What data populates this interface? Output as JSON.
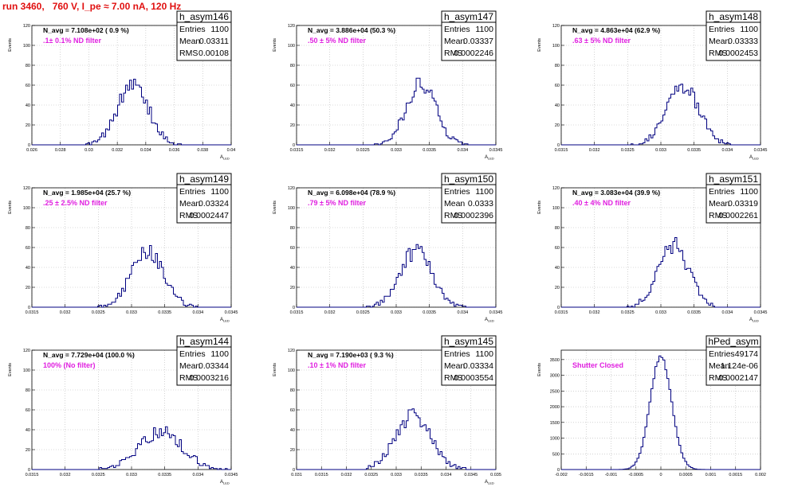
{
  "run_title": "run 3460,   760 V, I_pe ≈ 7.00 nA, 120 Hz",
  "colors": {
    "title": "#e01010",
    "histogram": "#000080",
    "annotation": "#e020e0",
    "grid": "#b8b8b8"
  },
  "chart_data": [
    {
      "type": "histogram",
      "name": "h_asym146",
      "annotation_top": "N_avg = 7.108e+02 ( 0.9 %)",
      "annotation_filter": ".1± 0.1% ND filter",
      "stats": {
        "entries_label": "Entries",
        "entries": "1100",
        "mean_label": "Mean",
        "mean": "0.03311",
        "rms_label": "RMS",
        "rms": "0.00108"
      },
      "xlim": [
        0.026,
        0.04
      ],
      "ylim": [
        0,
        120
      ],
      "xticks": [
        "0.026",
        "0.028",
        "0.03",
        "0.032",
        "0.034",
        "0.036",
        "0.038",
        "0.04"
      ],
      "yticks": [
        "0",
        "20",
        "40",
        "60",
        "80",
        "100",
        "120"
      ],
      "xlabel": "A_{LED}",
      "ylabel": "Events",
      "mean_val": 0.03311,
      "sigma": 0.00108,
      "peak": 62,
      "seed": 146
    },
    {
      "type": "histogram",
      "name": "h_asym147",
      "annotation_top": "N_avg = 3.886e+04 (50.3 %)",
      "annotation_filter": ".50 ± 5% ND filter",
      "stats": {
        "entries_label": "Entries",
        "entries": "1100",
        "mean_label": "Mean",
        "mean": "0.03337",
        "rms_label": "RMS",
        "rms": "0.0002246"
      },
      "xlim": [
        0.0315,
        0.0345
      ],
      "ylim": [
        0,
        120
      ],
      "xticks": [
        "0.0315",
        "0.032",
        "0.0325",
        "0.033",
        "0.0335",
        "0.034",
        "0.0345"
      ],
      "yticks": [
        "0",
        "20",
        "40",
        "60",
        "80",
        "100",
        "120"
      ],
      "xlabel": "A_{LED}",
      "ylabel": "Events",
      "mean_val": 0.03337,
      "sigma": 0.0002246,
      "peak": 62,
      "seed": 147
    },
    {
      "type": "histogram",
      "name": "h_asym148",
      "annotation_top": "N_avg = 4.863e+04 (62.9 %)",
      "annotation_filter": ".63 ± 5% ND filter",
      "stats": {
        "entries_label": "Entries",
        "entries": "1100",
        "mean_label": "Mean",
        "mean": "0.03333",
        "rms_label": "RMS",
        "rms": "0.0002453"
      },
      "xlim": [
        0.0315,
        0.0345
      ],
      "ylim": [
        0,
        120
      ],
      "xticks": [
        "0.0315",
        "0.032",
        "0.0325",
        "0.033",
        "0.0335",
        "0.034",
        "0.0345"
      ],
      "yticks": [
        "0",
        "20",
        "40",
        "60",
        "80",
        "100",
        "120"
      ],
      "xlabel": "A_{LED}",
      "ylabel": "Events",
      "mean_val": 0.03333,
      "sigma": 0.0002453,
      "peak": 58,
      "seed": 148
    },
    {
      "type": "histogram",
      "name": "h_asym149",
      "annotation_top": "N_avg = 1.985e+04 (25.7 %)",
      "annotation_filter": ".25 ± 2.5% ND filter",
      "stats": {
        "entries_label": "Entries",
        "entries": "1100",
        "mean_label": "Mean",
        "mean": "0.03324",
        "rms_label": "RMS",
        "rms": "0.0002447"
      },
      "xlim": [
        0.0315,
        0.0345
      ],
      "ylim": [
        0,
        120
      ],
      "xticks": [
        "0.0315",
        "0.032",
        "0.0325",
        "0.033",
        "0.0335",
        "0.034",
        "0.0345"
      ],
      "yticks": [
        "0",
        "20",
        "40",
        "60",
        "80",
        "100",
        "120"
      ],
      "xlabel": "A_{LED}",
      "ylabel": "Events",
      "mean_val": 0.03324,
      "sigma": 0.0002447,
      "peak": 56,
      "seed": 149
    },
    {
      "type": "histogram",
      "name": "h_asym150",
      "annotation_top": "N_avg = 6.098e+04 (78.9 %)",
      "annotation_filter": ".79 ± 5% ND filter",
      "stats": {
        "entries_label": "Entries",
        "entries": "1100",
        "mean_label": "Mean",
        "mean": "0.0333",
        "rms_label": "RMS",
        "rms": "0.0002396"
      },
      "xlim": [
        0.0315,
        0.0345
      ],
      "ylim": [
        0,
        120
      ],
      "xticks": [
        "0.0315",
        "0.032",
        "0.0325",
        "0.033",
        "0.0335",
        "0.034",
        "0.0345"
      ],
      "yticks": [
        "0",
        "20",
        "40",
        "60",
        "80",
        "100",
        "120"
      ],
      "xlabel": "A_{LED}",
      "ylabel": "Events",
      "mean_val": 0.0333,
      "sigma": 0.0002396,
      "peak": 57,
      "seed": 150
    },
    {
      "type": "histogram",
      "name": "h_asym151",
      "annotation_top": "N_avg = 3.083e+04 (39.9 %)",
      "annotation_filter": ".40 ± 4% ND filter",
      "stats": {
        "entries_label": "Entries",
        "entries": "1100",
        "mean_label": "Mean",
        "mean": "0.03319",
        "rms_label": "RMS",
        "rms": "0.0002261"
      },
      "xlim": [
        0.0315,
        0.0345
      ],
      "ylim": [
        0,
        120
      ],
      "xticks": [
        "0.0315",
        "0.032",
        "0.0325",
        "0.033",
        "0.0335",
        "0.034",
        "0.0345"
      ],
      "yticks": [
        "0",
        "20",
        "40",
        "60",
        "80",
        "100",
        "120"
      ],
      "xlabel": "A_{LED}",
      "ylabel": "Events",
      "mean_val": 0.03319,
      "sigma": 0.0002261,
      "peak": 62,
      "seed": 151
    },
    {
      "type": "histogram",
      "name": "h_asym144",
      "annotation_top": "N_avg = 7.729e+04 (100.0 %)",
      "annotation_filter": "100% (No filter)",
      "stats": {
        "entries_label": "Entries",
        "entries": "1100",
        "mean_label": "Mean",
        "mean": "0.03344",
        "rms_label": "RMS",
        "rms": "0.0003216"
      },
      "xlim": [
        0.0315,
        0.0345
      ],
      "ylim": [
        0,
        120
      ],
      "xticks": [
        "0.0315",
        "0.032",
        "0.0325",
        "0.033",
        "0.0335",
        "0.034",
        "0.0345"
      ],
      "yticks": [
        "0",
        "20",
        "40",
        "60",
        "80",
        "100",
        "120"
      ],
      "xlabel": "A_{LED}",
      "ylabel": "Events",
      "mean_val": 0.03344,
      "sigma": 0.0003216,
      "peak": 38,
      "seed": 144
    },
    {
      "type": "histogram",
      "name": "h_asym145",
      "annotation_top": "N_avg = 7.190e+03 ( 9.3 %)",
      "annotation_filter": ".10 ± 1% ND filter",
      "stats": {
        "entries_label": "Entries",
        "entries": "1100",
        "mean_label": "Mean",
        "mean": "0.03334",
        "rms_label": "RMS",
        "rms": "0.0003554"
      },
      "xlim": [
        0.031,
        0.035
      ],
      "ylim": [
        0,
        120
      ],
      "xticks": [
        "0.031",
        "0.0315",
        "0.032",
        "0.0325",
        "0.033",
        "0.0335",
        "0.034",
        "0.0345",
        "0.035"
      ],
      "yticks": [
        "0",
        "20",
        "40",
        "60",
        "80",
        "100",
        "120"
      ],
      "xlabel": "A_{LED}",
      "ylabel": "Events",
      "mean_val": 0.03334,
      "sigma": 0.0003554,
      "peak": 55,
      "seed": 145
    },
    {
      "type": "histogram",
      "name": "hPed_asym",
      "annotation_top": "",
      "annotation_filter": "Shutter Closed",
      "stats": {
        "entries_label": "Entries",
        "entries": "49174",
        "mean_label": "Mean",
        "mean": "1.124e-06",
        "rms_label": "RMS",
        "rms": "0.0002147"
      },
      "xlim": [
        -0.002,
        0.002
      ],
      "ylim": [
        0,
        3800
      ],
      "xticks": [
        "-0.002",
        "-0.0015",
        "-0.001",
        "-0.0005",
        "0",
        "0.0005",
        "0.001",
        "0.0015",
        "0.002"
      ],
      "yticks": [
        "0",
        "500",
        "1000",
        "1500",
        "2000",
        "2500",
        "3000",
        "3500"
      ],
      "xlabel": "",
      "ylabel": "Events",
      "mean_val": 1.124e-06,
      "sigma": 0.0002147,
      "peak": 3600,
      "seed": 99
    }
  ]
}
